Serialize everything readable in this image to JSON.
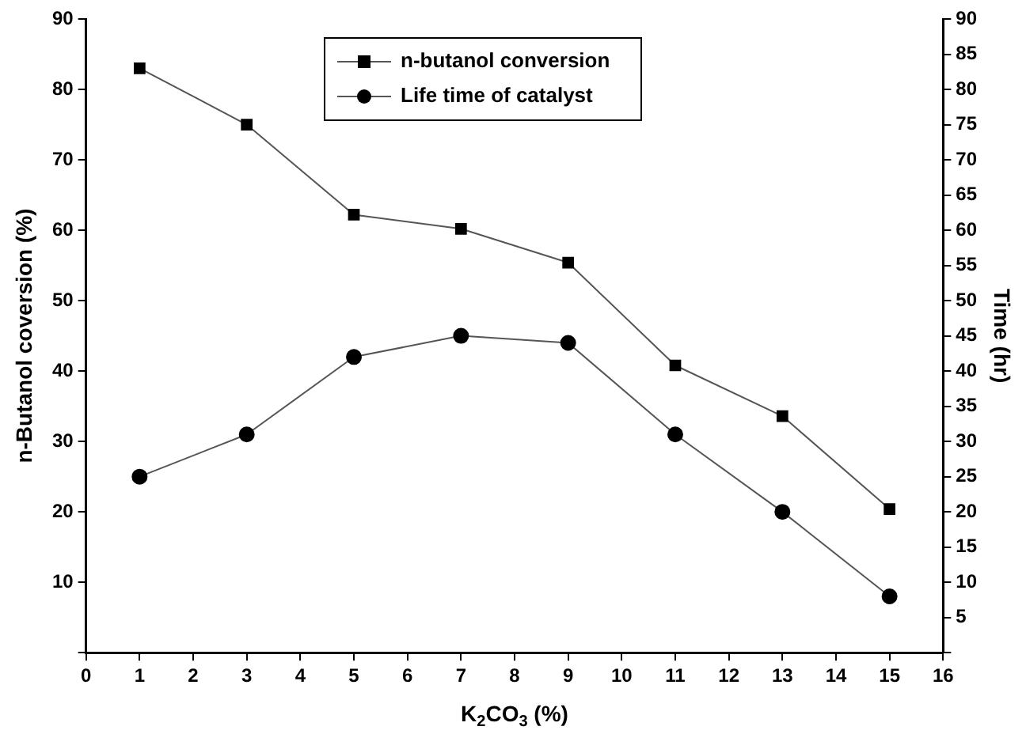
{
  "chart_data": {
    "type": "line",
    "xlabel": "K$_{2}$CO$_{3}$ (%)",
    "ylabel": "n-Butanol coversion (%)",
    "y2label": "Time (hr)",
    "x": [
      1,
      3,
      5,
      7,
      9,
      11,
      13,
      15
    ],
    "series": [
      {
        "name": "n-butanol conversion",
        "color": "#000000",
        "marker": "square",
        "values": [
          83,
          75,
          62.2,
          60.2,
          55.4,
          40.8,
          33.6,
          20.4
        ]
      },
      {
        "name": "Life time of catalyst",
        "color": "#000000",
        "marker": "circle",
        "axis": "y2",
        "values": [
          25,
          31,
          42,
          45,
          44,
          31,
          20,
          8
        ]
      }
    ],
    "xlim": [
      0,
      16
    ],
    "xticks": [
      0,
      1,
      2,
      3,
      4,
      5,
      6,
      7,
      8,
      9,
      10,
      11,
      12,
      13,
      14,
      15,
      16
    ],
    "ylim": [
      0,
      90
    ],
    "yticks": [
      {
        "value": 0,
        "label": null
      },
      10,
      20,
      30,
      40,
      50,
      60,
      70,
      80,
      90
    ],
    "y2lim": [
      0,
      90
    ],
    "y2ticks": [
      {
        "value": 0,
        "label": null
      },
      5,
      10,
      15,
      20,
      25,
      30,
      35,
      40,
      45,
      50,
      55,
      60,
      65,
      70,
      75,
      80,
      85,
      90
    ],
    "grid": false,
    "legend": "top",
    "line_style": "solid"
  }
}
